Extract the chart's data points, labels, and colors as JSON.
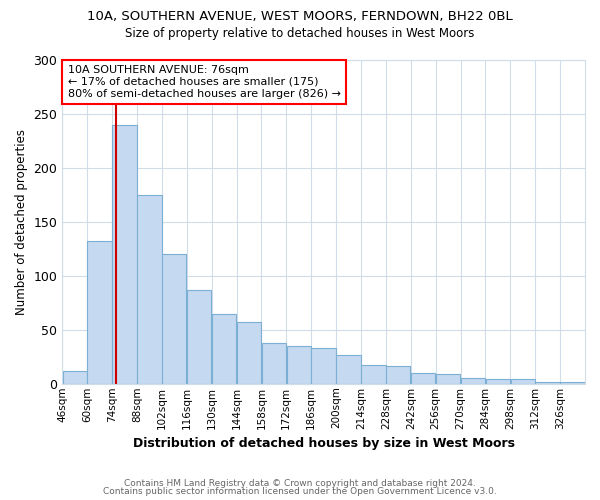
{
  "title1": "10A, SOUTHERN AVENUE, WEST MOORS, FERNDOWN, BH22 0BL",
  "title2": "Size of property relative to detached houses in West Moors",
  "xlabel": "Distribution of detached houses by size in West Moors",
  "ylabel": "Number of detached properties",
  "footer1": "Contains HM Land Registry data © Crown copyright and database right 2024.",
  "footer2": "Contains public sector information licensed under the Open Government Licence v3.0.",
  "annotation_line1": "10A SOUTHERN AVENUE: 76sqm",
  "annotation_line2": "← 17% of detached houses are smaller (175)",
  "annotation_line3": "80% of semi-detached houses are larger (826) →",
  "property_size": 76,
  "bar_color": "#c5d9f0",
  "bar_edge_color": "#7bafd4",
  "vline_color": "#cc0000",
  "categories": [
    "46sqm",
    "60sqm",
    "74sqm",
    "88sqm",
    "102sqm",
    "116sqm",
    "130sqm",
    "144sqm",
    "158sqm",
    "172sqm",
    "186sqm",
    "200sqm",
    "214sqm",
    "228sqm",
    "242sqm",
    "256sqm",
    "270sqm",
    "284sqm",
    "298sqm",
    "312sqm",
    "326sqm"
  ],
  "values": [
    12,
    132,
    240,
    175,
    120,
    87,
    65,
    57,
    38,
    35,
    33,
    27,
    17,
    16,
    10,
    9,
    5,
    4,
    4,
    2,
    2
  ],
  "bin_edges": [
    46,
    60,
    74,
    88,
    102,
    116,
    130,
    144,
    158,
    172,
    186,
    200,
    214,
    228,
    242,
    256,
    270,
    284,
    298,
    312,
    326,
    340
  ],
  "ylim": [
    0,
    300
  ],
  "yticks": [
    0,
    50,
    100,
    150,
    200,
    250,
    300
  ],
  "background_color": "#ffffff",
  "plot_bg_color": "#ffffff",
  "grid_color": "#d0dce8"
}
